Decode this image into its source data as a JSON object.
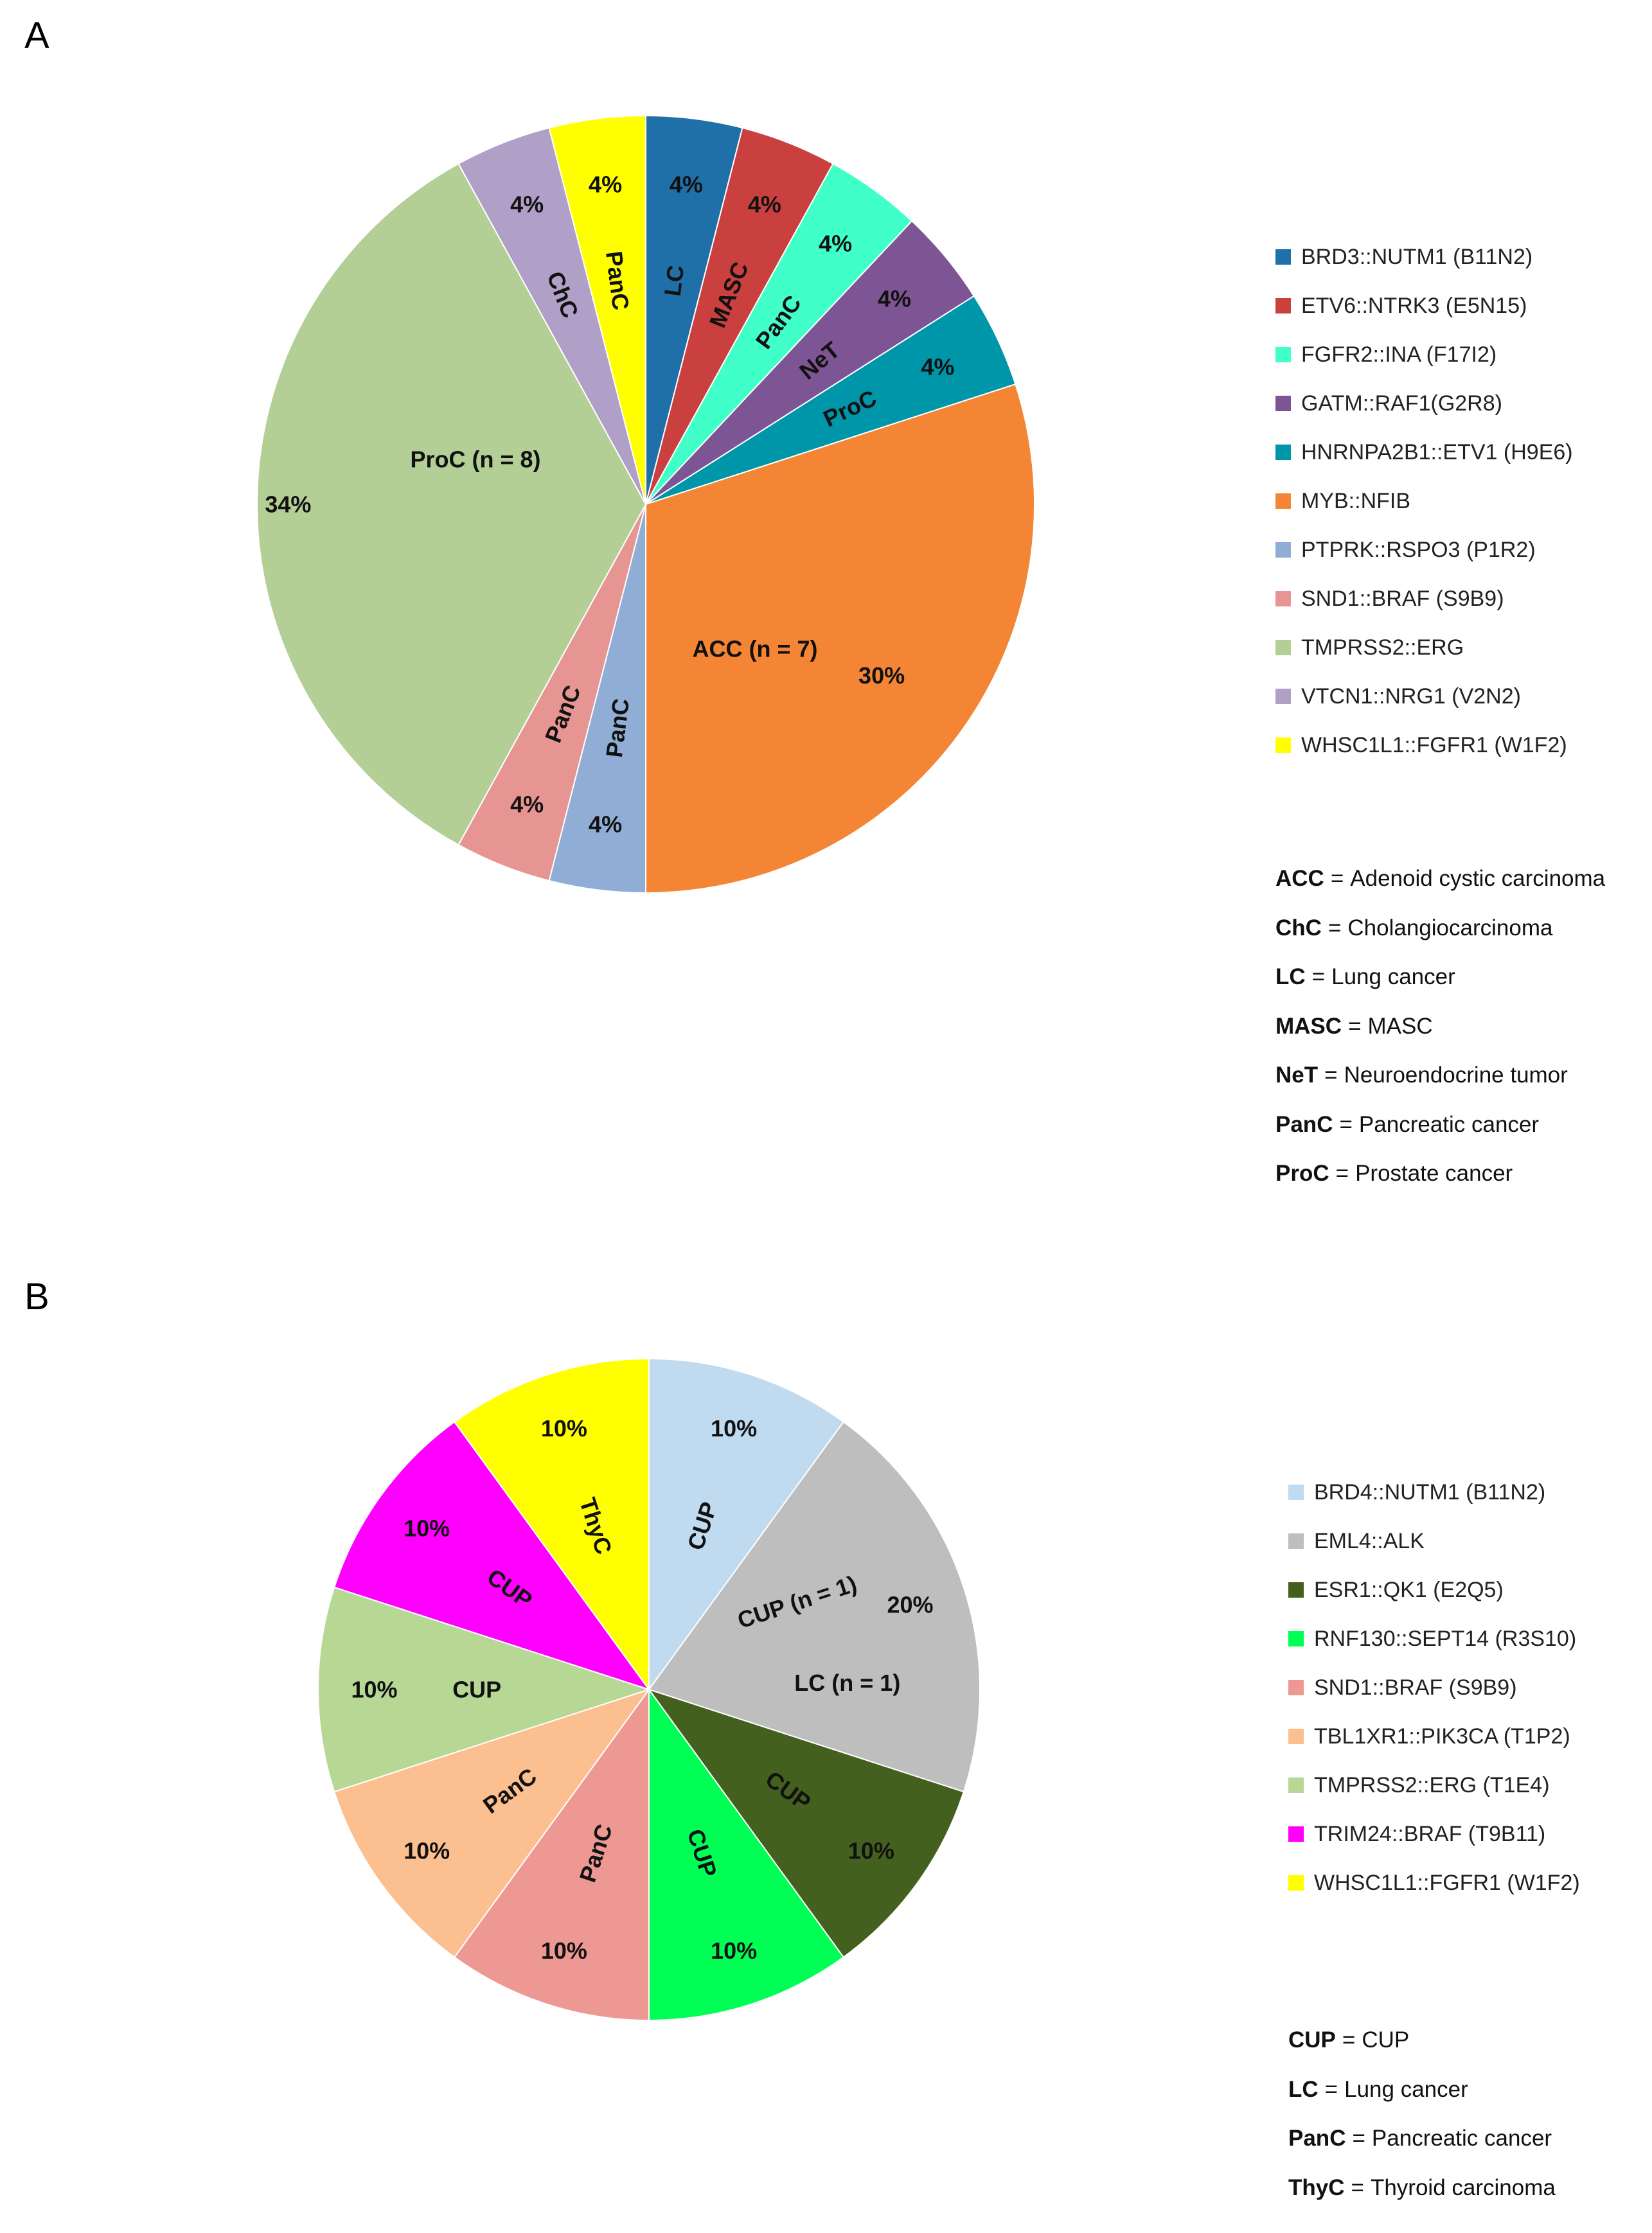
{
  "chart_data": [
    {
      "panel": "A",
      "type": "pie",
      "slices": [
        {
          "name": "BRD3::NUTM1 (B11N2)",
          "value": 4,
          "value_label": "4%",
          "label": "LC",
          "color": "#1F6FA8"
        },
        {
          "name": "ETV6::NTRK3 (E5N15)",
          "value": 4,
          "value_label": "4%",
          "label": "MASC",
          "color": "#C9403E"
        },
        {
          "name": "FGFR2::INA (F17I2)",
          "value": 4,
          "value_label": "4%",
          "label": "PanC",
          "color": "#40FFC8"
        },
        {
          "name": "GATM::RAF1(G2R8)",
          "value": 4,
          "value_label": "4%",
          "label": "NeT",
          "color": "#7D5594"
        },
        {
          "name": "HNRNPA2B1::ETV1 (H9E6)",
          "value": 4,
          "value_label": "4%",
          "label": "ProC",
          "color": "#0096AA"
        },
        {
          "name": "MYB::NFIB",
          "value": 30,
          "value_label": "30%",
          "label": "ACC (n = 7)",
          "color": "#F48535"
        },
        {
          "name": "PTPRK::RSPO3 (P1R2)",
          "value": 4,
          "value_label": "4%",
          "label": "PanC",
          "color": "#8FADD5"
        },
        {
          "name": "SND1::BRAF (S9B9)",
          "value": 4,
          "value_label": "4%",
          "label": "PanC",
          "color": "#E79592"
        },
        {
          "name": "TMPRSS2::ERG",
          "value": 34,
          "value_label": "34%",
          "label": "ProC (n = 8)",
          "color": "#B3CF95"
        },
        {
          "name": "VTCN1::NRG1 (V2N2)",
          "value": 4,
          "value_label": "4%",
          "label": "ChC",
          "color": "#B09FC6"
        },
        {
          "name": "WHSC1L1::FGFR1 (W1F2)",
          "value": 4,
          "value_label": "4%",
          "label": "PanC",
          "color": "#FFFF00"
        }
      ],
      "abbreviations": [
        {
          "abbr": "ACC",
          "meaning": "Adenoid cystic carcinoma"
        },
        {
          "abbr": "ChC",
          "meaning": "Cholangiocarcinoma"
        },
        {
          "abbr": "LC",
          "meaning": "Lung cancer"
        },
        {
          "abbr": "MASC",
          "meaning": "MASC"
        },
        {
          "abbr": "NeT",
          "meaning": "Neuroendocrine tumor"
        },
        {
          "abbr": "PanC",
          "meaning": "Pancreatic cancer"
        },
        {
          "abbr": "ProC",
          "meaning": "Prostate cancer"
        }
      ]
    },
    {
      "panel": "B",
      "type": "pie",
      "slices": [
        {
          "name": "BRD4::NUTM1 (B11N2)",
          "value": 10,
          "value_label": "10%",
          "label": "CUP",
          "color": "#C0DAF0"
        },
        {
          "name": "EML4::ALK",
          "value": 20,
          "value_label": "20%",
          "label": "CUP (n = 1)",
          "label2": "LC (n = 1)",
          "color": "#BEBEBE"
        },
        {
          "name": "ESR1::QK1 (E2Q5)",
          "value": 10,
          "value_label": "10%",
          "label": "CUP",
          "color": "#44601F"
        },
        {
          "name": "RNF130::SEPT14 (R3S10)",
          "value": 10,
          "value_label": "10%",
          "label": "CUP",
          "color": "#00FF55"
        },
        {
          "name": "SND1::BRAF (S9B9)",
          "value": 10,
          "value_label": "10%",
          "label": "PanC",
          "color": "#EE9893"
        },
        {
          "name": "TBL1XR1::PIK3CA (T1P2)",
          "value": 10,
          "value_label": "10%",
          "label": "PanC",
          "color": "#FCBF8F"
        },
        {
          "name": "TMPRSS2::ERG (T1E4)",
          "value": 10,
          "value_label": "10%",
          "label": "CUP",
          "color": "#B7D794"
        },
        {
          "name": "TRIM24::BRAF (T9B11)",
          "value": 10,
          "value_label": "10%",
          "label": "CUP",
          "color": "#FF00FF"
        },
        {
          "name": "WHSC1L1::FGFR1 (W1F2)",
          "value": 10,
          "value_label": "10%",
          "label": "ThyC",
          "color": "#FFFF00"
        }
      ],
      "abbreviations": [
        {
          "abbr": "CUP",
          "meaning": "CUP"
        },
        {
          "abbr": "LC",
          "meaning": "Lung cancer"
        },
        {
          "abbr": "PanC",
          "meaning": "Pancreatic cancer"
        },
        {
          "abbr": "ThyC",
          "meaning": "Thyroid carcinoma"
        }
      ]
    }
  ]
}
